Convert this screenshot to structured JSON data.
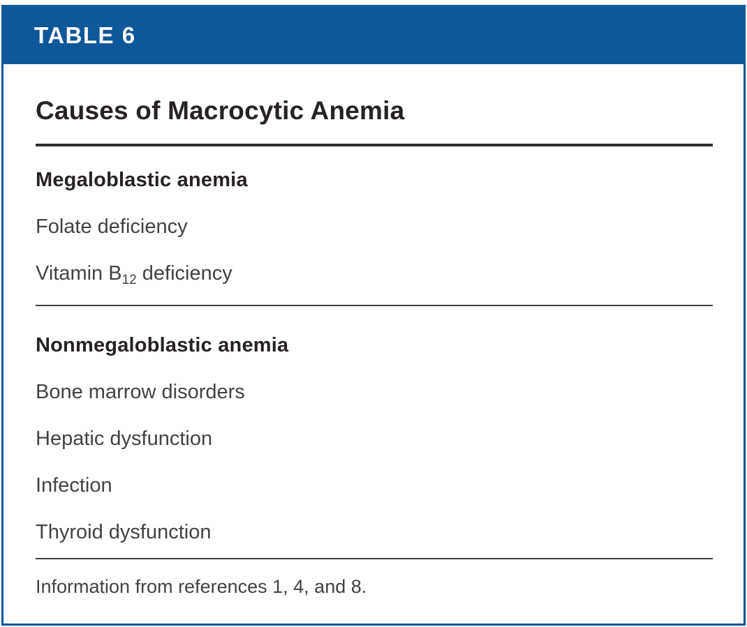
{
  "table": {
    "label": "TABLE 6",
    "title": "Causes of Macrocytic Anemia",
    "sections": [
      {
        "header": "Megaloblastic anemia",
        "items": [
          {
            "text": "Folate deficiency"
          },
          {
            "pre": "Vitamin B",
            "sub": "12",
            "post": " deficiency"
          }
        ]
      },
      {
        "header": "Nonmegaloblastic anemia",
        "items": [
          {
            "text": "Bone marrow disorders"
          },
          {
            "text": "Hepatic dysfunction"
          },
          {
            "text": "Infection"
          },
          {
            "text": "Thyroid dysfunction"
          }
        ]
      }
    ],
    "footnote": "Information from references 1, 4, and 8.",
    "colors": {
      "accent_blue": "#0e5799",
      "title_text": "#272223",
      "body_text": "#454142",
      "rule_dark": "#332f30"
    }
  }
}
